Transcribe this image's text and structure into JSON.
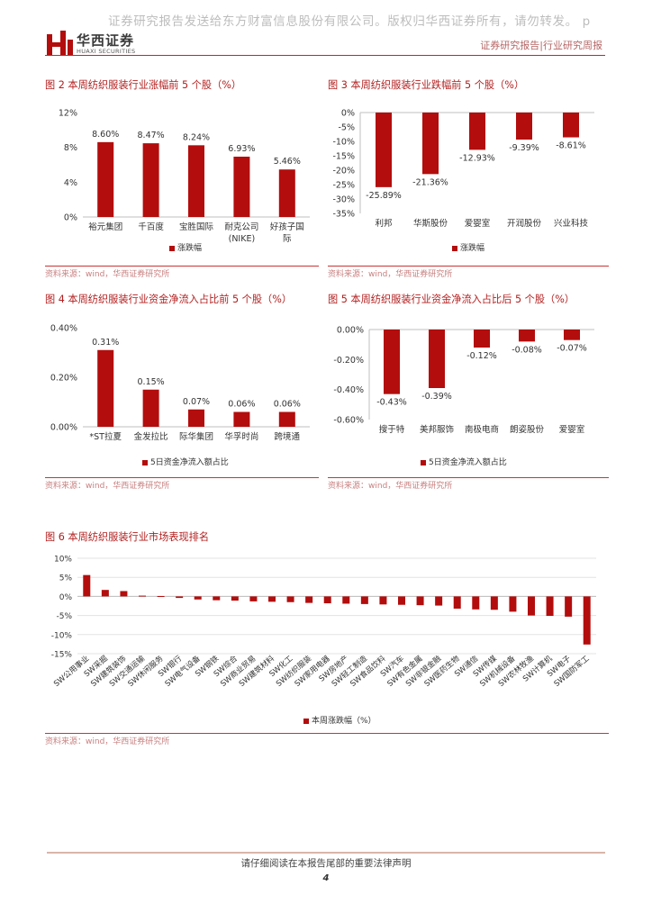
{
  "watermark": "证券研究报告发送给东方财富信息股份有限公司。版权归华西证券所有，请勿转发。 p",
  "header": {
    "logo_cn": "华西证券",
    "logo_en": "HUAXI SECURITIES",
    "right_text": "证券研究报告|行业研究周报"
  },
  "colors": {
    "bar": "#b30d0d",
    "accent": "#b21e1e",
    "source": "#c98080"
  },
  "figures": {
    "fig2": {
      "title": "图 2 本周纺织服装行业涨幅前 5 个股（%）",
      "legend": "涨跌幅",
      "source": "资料来源：wind，华西证券研究所"
    },
    "fig3": {
      "title": "图 3 本周纺织服装行业跌幅前 5 个股（%）",
      "legend": "涨跌幅",
      "source": "资料来源：wind，华西证券研究所"
    },
    "fig4": {
      "title": "图 4 本周纺织服装行业资金净流入占比前 5 个股（%）",
      "legend": "5日资金净流入额占比",
      "source": "资料来源：wind，华西证券研究所"
    },
    "fig5": {
      "title": "图 5 本周纺织服装行业资金净流入占比后 5 个股（%）",
      "legend": "5日资金净流入额占比",
      "source": "资料来源：wind，华西证券研究所"
    },
    "fig6": {
      "title": "图 6 本周纺织服装行业市场表现排名",
      "legend": "本周涨跌幅（%）",
      "source": "资料来源：wind，华西证券研究所"
    }
  },
  "chart_data": [
    {
      "id": "fig2",
      "type": "bar",
      "categories": [
        "裕元集团",
        "千百度",
        "宝胜国际",
        "耐克公司\n(NIKE)",
        "好孩子国\n际"
      ],
      "values": [
        8.6,
        8.47,
        8.24,
        6.93,
        5.46
      ],
      "labels": [
        "8.60%",
        "8.47%",
        "8.24%",
        "6.93%",
        "5.46%"
      ],
      "ylim": [
        0,
        12
      ],
      "ticks": [
        0,
        4,
        8,
        12
      ],
      "tick_labels": [
        "0%",
        "4%",
        "8%",
        "12%"
      ],
      "series": [
        {
          "name": "涨跌幅"
        }
      ]
    },
    {
      "id": "fig3",
      "type": "bar",
      "categories": [
        "利邦",
        "华斯股份",
        "爱婴室",
        "开润股份",
        "兴业科技"
      ],
      "values": [
        -25.89,
        -21.36,
        -12.93,
        -9.39,
        -8.61
      ],
      "labels": [
        "-25.89%",
        "-21.36%",
        "-12.93%",
        "-9.39%",
        "-8.61%"
      ],
      "ylim": [
        -35,
        0
      ],
      "ticks": [
        0,
        -5,
        -10,
        -15,
        -20,
        -25,
        -30,
        -35
      ],
      "tick_labels": [
        "0%",
        "-5%",
        "-10%",
        "-15%",
        "-20%",
        "-25%",
        "-30%",
        "-35%"
      ],
      "series": [
        {
          "name": "涨跌幅"
        }
      ]
    },
    {
      "id": "fig4",
      "type": "bar",
      "categories": [
        "*ST拉夏",
        "金发拉比",
        "际华集团",
        "华孚时尚",
        "跨境通"
      ],
      "values": [
        0.31,
        0.15,
        0.07,
        0.06,
        0.06
      ],
      "labels": [
        "0.31%",
        "0.15%",
        "0.07%",
        "0.06%",
        "0.06%"
      ],
      "ylim": [
        0,
        0.4
      ],
      "ticks": [
        0,
        0.2,
        0.4
      ],
      "tick_labels": [
        "0.00%",
        "0.20%",
        "0.40%"
      ],
      "series": [
        {
          "name": "5日资金净流入额占比"
        }
      ]
    },
    {
      "id": "fig5",
      "type": "bar",
      "categories": [
        "搜于特",
        "美邦服饰",
        "南极电商",
        "朗姿股份",
        "爱婴室"
      ],
      "values": [
        -0.43,
        -0.39,
        -0.12,
        -0.08,
        -0.07
      ],
      "labels": [
        "-0.43%",
        "-0.39%",
        "-0.12%",
        "-0.08%",
        "-0.07%"
      ],
      "ylim": [
        -0.6,
        0
      ],
      "ticks": [
        0,
        -0.2,
        -0.4,
        -0.6
      ],
      "tick_labels": [
        "0.00%",
        "-0.20%",
        "-0.40%",
        "-0.60%"
      ],
      "series": [
        {
          "name": "5日资金净流入额占比"
        }
      ]
    },
    {
      "id": "fig6",
      "type": "bar",
      "categories": [
        "SW公用事业",
        "SW采掘",
        "SW建筑装饰",
        "SW交通运输",
        "SW休闲服务",
        "SW银行",
        "SW电气设备",
        "SW钢铁",
        "SW综合",
        "SW商业贸易",
        "SW建筑材料",
        "SW化工",
        "SW纺织服装",
        "SW家用电器",
        "SW房地产",
        "SW轻工制造",
        "SW食品饮料",
        "SW汽车",
        "SW有色金属",
        "SW非银金融",
        "SW医药生物",
        "SW通信",
        "SW传媒",
        "SW机械设备",
        "SW农林牧渔",
        "SW计算机",
        "SW电子",
        "SW国防军工"
      ],
      "values": [
        5.6,
        1.7,
        1.4,
        0.2,
        0.1,
        -0.4,
        -0.8,
        -1.0,
        -1.1,
        -1.3,
        -1.4,
        -1.5,
        -1.7,
        -1.8,
        -1.9,
        -2.0,
        -2.1,
        -2.2,
        -2.3,
        -2.4,
        -3.2,
        -3.4,
        -3.5,
        -4.0,
        -5.0,
        -5.1,
        -5.3,
        -12.6
      ],
      "ylim": [
        -15,
        10
      ],
      "ticks": [
        10,
        5,
        0,
        -5,
        -10,
        -15
      ],
      "tick_labels": [
        "10%",
        "5%",
        "0%",
        "-5%",
        "-10%",
        "-15%"
      ],
      "series": [
        {
          "name": "本周涨跌幅（%）"
        }
      ]
    }
  ],
  "footer": {
    "notice": "请仔细阅读在本报告尾部的重要法律声明",
    "page": "4"
  }
}
